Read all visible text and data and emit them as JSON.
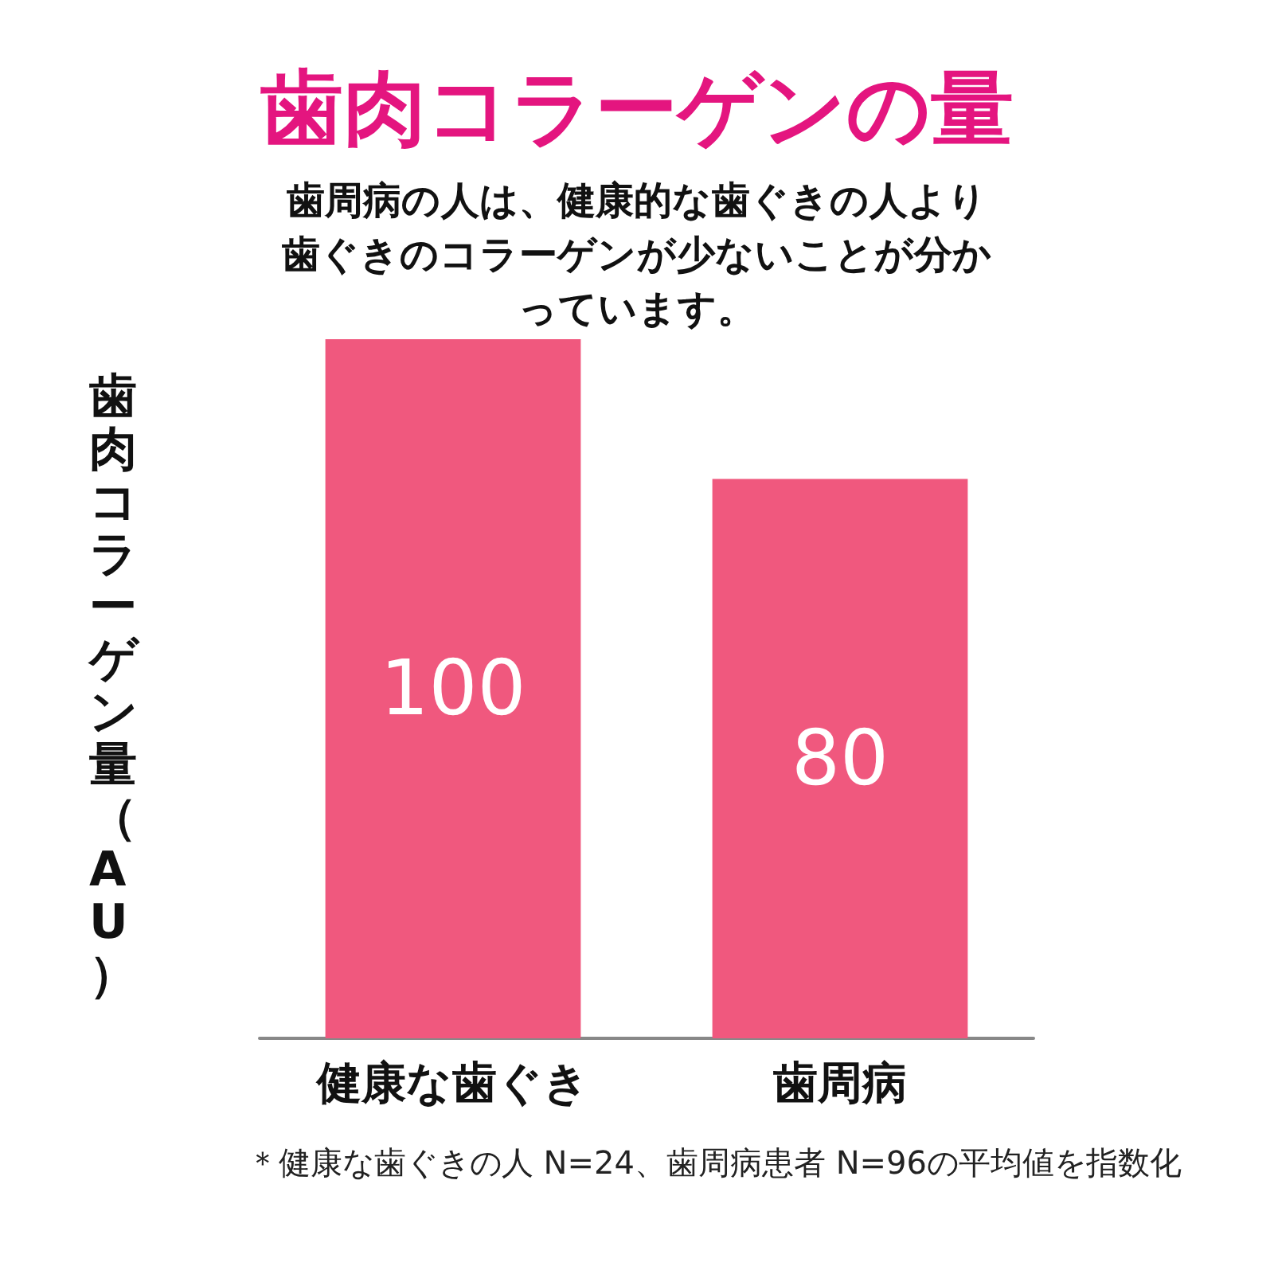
{
  "chart_data": {
    "type": "bar",
    "title": "歯肉コラーゲンの量",
    "subtitle": "歯周病の人は、健康的な歯ぐきの人より歯ぐきのコラーゲンが少ないことが分かっています。",
    "ylabel": "歯肉コラーゲン量（AU）",
    "categories": [
      "健康な歯ぐき",
      "歯周病"
    ],
    "values": [
      100,
      80
    ],
    "color": "#f0587e",
    "data_labels": true,
    "annotations": [
      "＊健康な歯ぐきの人 N=24、歯周病患者 N=96の平均値を指数化"
    ]
  }
}
